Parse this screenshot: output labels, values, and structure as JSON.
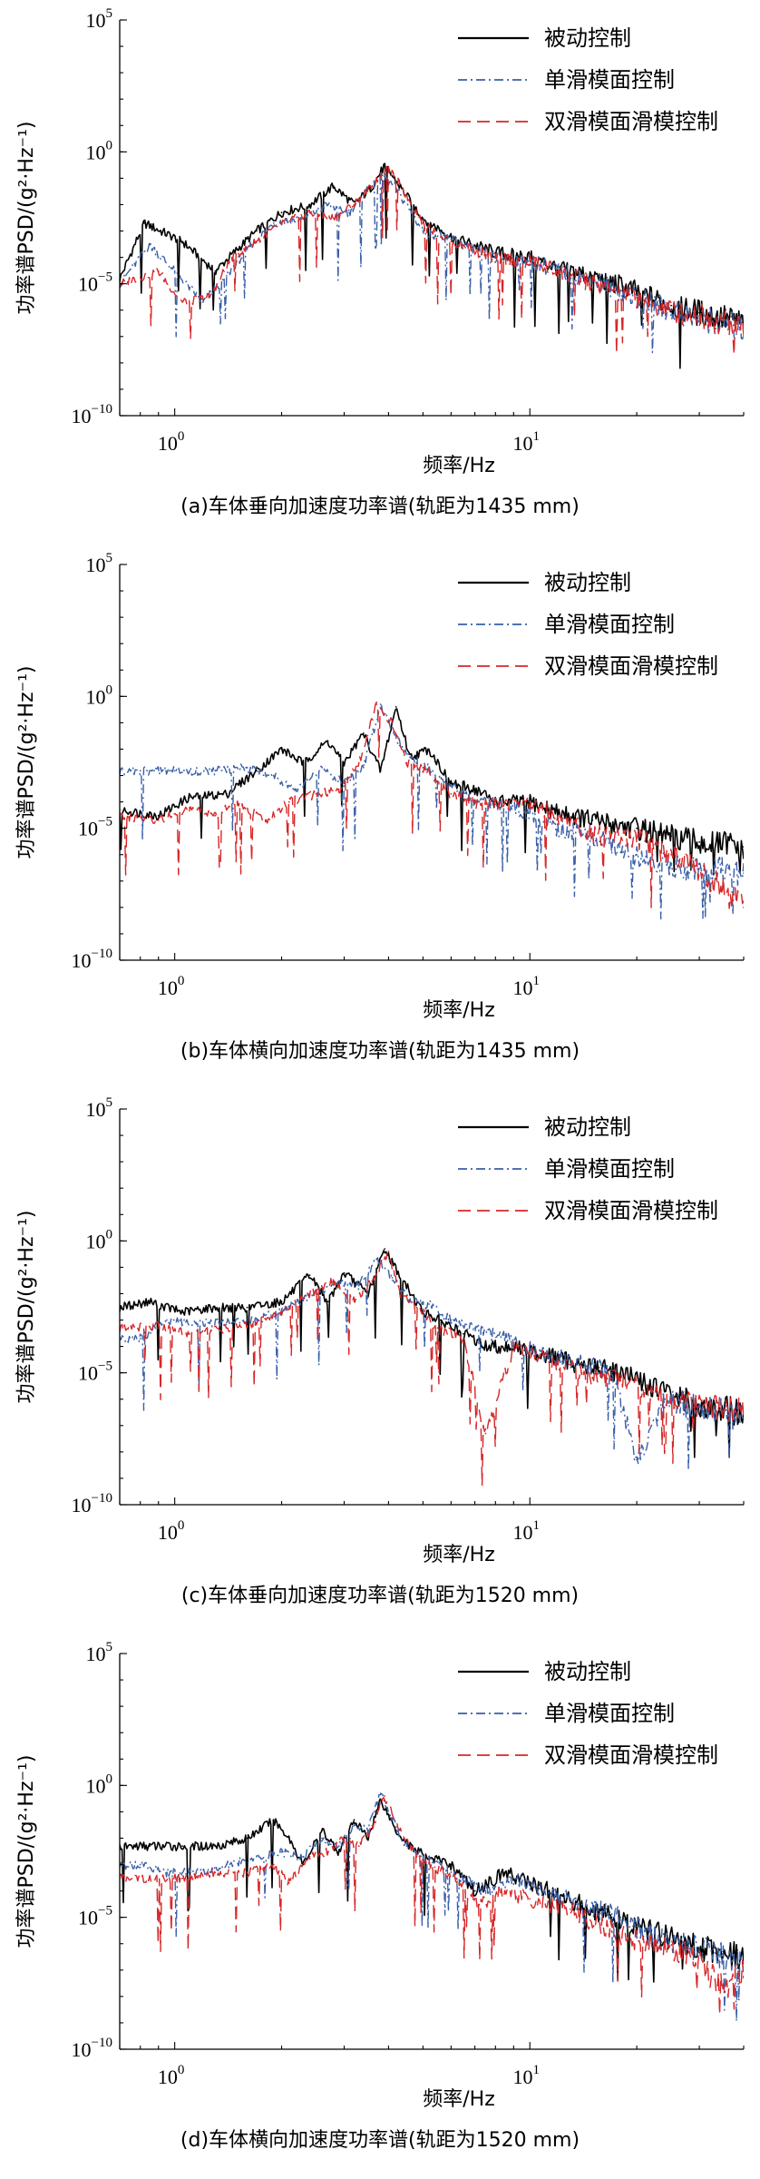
{
  "chart_data": [
    {
      "type": "line",
      "caption": "(a)车体垂向加速度功率谱(轨距为1435 mm)",
      "xlabel": "频率/Hz",
      "ylabel": "功率谱PSD/(g²·Hz⁻¹)",
      "xscale": "log",
      "yscale": "log",
      "xlim": [
        0.7,
        40
      ],
      "ylim": [
        1e-10,
        100000.0
      ],
      "legend_position": "top-right",
      "xticks": [
        {
          "value": 1,
          "base": "10",
          "exp": "0"
        },
        {
          "value": 10,
          "base": "10",
          "exp": "1"
        }
      ],
      "yticks": [
        {
          "value": 100000.0,
          "base": "10",
          "exp": "5"
        },
        {
          "value": 1,
          "base": "10",
          "exp": "0"
        },
        {
          "value": 1e-05,
          "base": "10",
          "exp": "−5"
        },
        {
          "value": 1e-10,
          "base": "10",
          "exp": "−10"
        }
      ],
      "series": [
        {
          "name": "被动控制",
          "color": "#000000",
          "dash": "solid",
          "x": [
            0.7,
            0.82,
            1.05,
            1.3,
            1.5,
            1.7,
            2.0,
            2.4,
            2.8,
            3.2,
            3.6,
            3.9,
            4.3,
            5.0,
            6.0,
            8.0,
            10,
            12,
            15,
            20,
            25,
            30,
            35,
            40
          ],
          "y": [
            1.5e-05,
            0.002,
            0.0004,
            3e-05,
            0.0002,
            0.001,
            0.005,
            0.01,
            0.05,
            0.01,
            0.05,
            0.3,
            0.05,
            0.003,
            0.0006,
            0.00015,
            0.0001,
            4e-05,
            2e-05,
            5e-06,
            1.5e-06,
            8e-07,
            5e-07,
            3e-07
          ]
        },
        {
          "name": "单滑模面控制",
          "color": "#3a5fa8",
          "dash": "dashdot",
          "x": [
            0.7,
            0.85,
            1.0,
            1.2,
            1.4,
            1.6,
            1.9,
            2.3,
            2.7,
            3.1,
            3.5,
            3.8,
            4.2,
            5.0,
            6.0,
            8.0,
            10,
            12,
            15,
            20,
            25,
            30,
            35,
            40
          ],
          "y": [
            1e-05,
            0.0003,
            3e-05,
            2e-06,
            2e-05,
            0.0002,
            0.002,
            0.003,
            0.01,
            0.005,
            0.04,
            0.15,
            0.04,
            0.001,
            0.0005,
            0.0001,
            8e-05,
            3e-05,
            1.5e-05,
            3e-06,
            1e-06,
            5e-07,
            3e-07,
            2e-07
          ]
        },
        {
          "name": "双滑模面滑模控制",
          "color": "#d62728",
          "dash": "dash",
          "x": [
            0.7,
            0.9,
            1.05,
            1.25,
            1.45,
            1.65,
            2.0,
            2.4,
            2.8,
            3.2,
            3.6,
            3.95,
            4.3,
            5.0,
            6.0,
            8.0,
            10,
            12,
            15,
            20,
            25,
            30,
            35,
            40
          ],
          "y": [
            1e-05,
            3e-05,
            2e-06,
            3e-06,
            0.0001,
            0.0003,
            0.002,
            0.005,
            0.003,
            0.01,
            0.05,
            0.25,
            0.06,
            0.002,
            0.0004,
            0.0001,
            7e-05,
            3e-05,
            1e-05,
            3e-06,
            1e-06,
            6e-07,
            4e-07,
            2.5e-07
          ]
        }
      ]
    },
    {
      "type": "line",
      "caption": "(b)车体横向加速度功率谱(轨距为1435 mm)",
      "xlabel": "频率/Hz",
      "ylabel": "功率谱PSD/(g²·Hz⁻¹)",
      "xscale": "log",
      "yscale": "log",
      "xlim": [
        0.7,
        40
      ],
      "ylim": [
        1e-10,
        100000.0
      ],
      "legend_position": "top-right",
      "xticks": [
        {
          "value": 1,
          "base": "10",
          "exp": "0"
        },
        {
          "value": 10,
          "base": "10",
          "exp": "1"
        }
      ],
      "yticks": [
        {
          "value": 100000.0,
          "base": "10",
          "exp": "5"
        },
        {
          "value": 1,
          "base": "10",
          "exp": "0"
        },
        {
          "value": 1e-05,
          "base": "10",
          "exp": "−5"
        },
        {
          "value": 1e-10,
          "base": "10",
          "exp": "−10"
        }
      ],
      "series": [
        {
          "name": "被动控制",
          "color": "#000000",
          "dash": "solid",
          "x": [
            0.7,
            0.9,
            1.1,
            1.4,
            1.7,
            2.0,
            2.3,
            2.7,
            3.0,
            3.4,
            3.8,
            4.2,
            4.6,
            5.2,
            6.0,
            7.0,
            8.0,
            10,
            12,
            15,
            20,
            25,
            30,
            40
          ],
          "y": [
            5e-05,
            3e-05,
            0.00015,
            0.0002,
            0.0015,
            0.01,
            0.003,
            0.02,
            0.003,
            0.04,
            0.0015,
            0.4,
            0.005,
            0.01,
            0.0005,
            0.0003,
            0.0001,
            0.0001,
            4e-05,
            2e-05,
            1e-05,
            5e-06,
            3e-06,
            2e-06
          ]
        },
        {
          "name": "单滑模面控制",
          "color": "#3a5fa8",
          "dash": "dashdot",
          "x": [
            0.8,
            1.0,
            1.3,
            1.6,
            1.9,
            2.2,
            2.6,
            3.0,
            3.4,
            3.8,
            4.2,
            4.6,
            5.2,
            6.0,
            7.0,
            8.0,
            10,
            12,
            15,
            20,
            25,
            30,
            40
          ],
          "y": [
            0.0015,
            0.0015,
            0.0015,
            0.002,
            0.001,
            0.0003,
            0.002,
            0.0005,
            0.002,
            0.5,
            0.03,
            0.005,
            0.002,
            0.0004,
            0.0001,
            0.0001,
            4e-05,
            1e-05,
            5e-06,
            1e-06,
            4e-07,
            3e-07,
            2e-07
          ]
        },
        {
          "name": "双滑模面滑模控制",
          "color": "#d62728",
          "dash": "dash",
          "x": [
            0.7,
            0.9,
            1.1,
            1.3,
            1.5,
            1.8,
            2.1,
            2.5,
            2.9,
            3.3,
            3.7,
            4.1,
            4.5,
            5.0,
            6.0,
            7.0,
            8.0,
            10,
            12,
            15,
            20,
            25,
            30,
            40
          ],
          "y": [
            3e-05,
            2e-05,
            6e-05,
            3e-05,
            0.0001,
            2e-05,
            0.0001,
            0.0002,
            0.0003,
            0.003,
            0.5,
            0.1,
            0.003,
            0.002,
            0.0002,
            0.0001,
            8e-05,
            0.0001,
            3e-05,
            6e-06,
            4e-06,
            1e-06,
            3e-07,
            1e-08
          ]
        }
      ]
    },
    {
      "type": "line",
      "caption": "(c)车体垂向加速度功率谱(轨距为1520 mm)",
      "xlabel": "频率/Hz",
      "ylabel": "功率谱PSD/(g²·Hz⁻¹)",
      "xscale": "log",
      "yscale": "log",
      "xlim": [
        0.7,
        40
      ],
      "ylim": [
        1e-10,
        100000.0
      ],
      "legend_position": "top-right",
      "xticks": [
        {
          "value": 1,
          "base": "10",
          "exp": "0"
        },
        {
          "value": 10,
          "base": "10",
          "exp": "1"
        }
      ],
      "yticks": [
        {
          "value": 100000.0,
          "base": "10",
          "exp": "5"
        },
        {
          "value": 1,
          "base": "10",
          "exp": "0"
        },
        {
          "value": 1e-05,
          "base": "10",
          "exp": "−5"
        },
        {
          "value": 1e-10,
          "base": "10",
          "exp": "−10"
        }
      ],
      "series": [
        {
          "name": "被动控制",
          "color": "#000000",
          "dash": "solid",
          "x": [
            0.7,
            0.85,
            1.05,
            1.3,
            1.6,
            2.0,
            2.4,
            2.7,
            3.0,
            3.5,
            3.9,
            4.4,
            5.0,
            5.6,
            6.5,
            7.5,
            9.0,
            11,
            14,
            18,
            22,
            27,
            33,
            40
          ],
          "y": [
            0.003,
            0.005,
            0.002,
            0.003,
            0.003,
            0.005,
            0.05,
            0.005,
            0.06,
            0.01,
            0.5,
            0.03,
            0.002,
            0.001,
            0.0003,
            0.0001,
            0.0001,
            5e-05,
            2e-05,
            1e-05,
            3e-06,
            1e-06,
            5e-07,
            3e-07
          ]
        },
        {
          "name": "单滑模面控制",
          "color": "#3a5fa8",
          "dash": "dashdot",
          "x": [
            0.8,
            0.95,
            1.15,
            1.4,
            1.7,
            2.1,
            2.5,
            2.9,
            3.3,
            3.7,
            4.1,
            4.6,
            5.2,
            6.0,
            7.0,
            8.5,
            10,
            13,
            17,
            20,
            24,
            30,
            36,
            40
          ],
          "y": [
            0.0002,
            0.001,
            0.0008,
            0.0008,
            0.001,
            0.003,
            0.01,
            0.03,
            0.02,
            0.2,
            0.04,
            0.005,
            0.004,
            0.001,
            0.0005,
            0.0002,
            8e-05,
            3e-05,
            1e-05,
            5e-09,
            1e-06,
            5e-07,
            3e-07,
            2e-07
          ]
        },
        {
          "name": "双滑模面滑模控制",
          "color": "#d62728",
          "dash": "dash",
          "x": [
            0.7,
            0.9,
            1.1,
            1.4,
            1.7,
            2.0,
            2.4,
            2.8,
            3.2,
            3.6,
            4.0,
            4.3,
            4.8,
            5.5,
            6.5,
            7.5,
            9.0,
            11,
            14,
            18,
            22,
            27,
            33,
            40
          ],
          "y": [
            0.0005,
            0.0006,
            0.0003,
            0.0005,
            0.0008,
            0.002,
            0.01,
            0.03,
            0.005,
            0.03,
            0.4,
            0.01,
            0.003,
            0.0005,
            0.0002,
            5e-08,
            0.0001,
            4e-05,
            1e-05,
            5e-06,
            2e-06,
            1e-06,
            5e-07,
            3e-07
          ]
        }
      ]
    },
    {
      "type": "line",
      "caption": "(d)车体横向加速度功率谱(轨距为1520 mm)",
      "xlabel": "频率/Hz",
      "ylabel": "功率谱PSD/(g²·Hz⁻¹)",
      "xscale": "log",
      "yscale": "log",
      "xlim": [
        0.7,
        40
      ],
      "ylim": [
        1e-10,
        100000.0
      ],
      "legend_position": "top-right",
      "xticks": [
        {
          "value": 1,
          "base": "10",
          "exp": "0"
        },
        {
          "value": 10,
          "base": "10",
          "exp": "1"
        }
      ],
      "yticks": [
        {
          "value": 100000.0,
          "base": "10",
          "exp": "5"
        },
        {
          "value": 1,
          "base": "10",
          "exp": "0"
        },
        {
          "value": 1e-05,
          "base": "10",
          "exp": "−5"
        },
        {
          "value": 1e-10,
          "base": "10",
          "exp": "−10"
        }
      ],
      "series": [
        {
          "name": "被动控制",
          "color": "#000000",
          "dash": "solid",
          "x": [
            0.7,
            0.85,
            1.05,
            1.3,
            1.6,
            1.9,
            2.1,
            2.3,
            2.6,
            2.9,
            3.2,
            3.5,
            3.8,
            4.2,
            4.6,
            5.2,
            6.0,
            7.0,
            8.5,
            10,
            13,
            17,
            22,
            28,
            35,
            40
          ],
          "y": [
            0.005,
            0.005,
            0.005,
            0.005,
            0.01,
            0.05,
            0.01,
            0.001,
            0.02,
            0.003,
            0.05,
            0.01,
            0.3,
            0.02,
            0.005,
            0.002,
            0.001,
            0.0001,
            0.0005,
            0.0002,
            5e-05,
            1e-05,
            3e-06,
            1e-06,
            5e-07,
            3e-07
          ]
        },
        {
          "name": "单滑模面控制",
          "color": "#3a5fa8",
          "dash": "dashdot",
          "x": [
            0.8,
            0.95,
            1.15,
            1.4,
            1.7,
            2.0,
            2.3,
            2.6,
            2.9,
            3.2,
            3.5,
            3.8,
            4.1,
            4.5,
            5.0,
            5.6,
            6.5,
            7.5,
            9.0,
            11,
            14,
            18,
            22,
            28,
            35,
            40
          ],
          "y": [
            0.001,
            0.0005,
            0.0005,
            0.001,
            0.002,
            0.003,
            0.002,
            0.01,
            0.005,
            0.03,
            0.02,
            0.5,
            0.05,
            0.005,
            0.002,
            0.001,
            0.0003,
            0.0001,
            0.0003,
            0.0001,
            3e-05,
            1e-05,
            2e-06,
            8e-07,
            4e-07,
            2e-07
          ]
        },
        {
          "name": "双滑模面滑模控制",
          "color": "#d62728",
          "dash": "dash",
          "x": [
            0.7,
            0.85,
            1.05,
            1.3,
            1.6,
            1.9,
            2.1,
            2.4,
            2.7,
            3.0,
            3.3,
            3.6,
            3.9,
            4.3,
            4.8,
            5.4,
            6.2,
            7.2,
            8.5,
            10,
            13,
            17,
            22,
            28,
            35,
            40
          ],
          "y": [
            0.0003,
            0.0003,
            0.0003,
            0.0005,
            0.0005,
            0.001,
            0.0002,
            0.002,
            0.003,
            0.01,
            0.005,
            0.03,
            0.4,
            0.02,
            0.002,
            0.0008,
            0.0003,
            3e-05,
            0.0001,
            5e-05,
            2e-05,
            3e-06,
            1e-06,
            5e-07,
            2e-08,
            1e-07
          ]
        }
      ]
    }
  ]
}
